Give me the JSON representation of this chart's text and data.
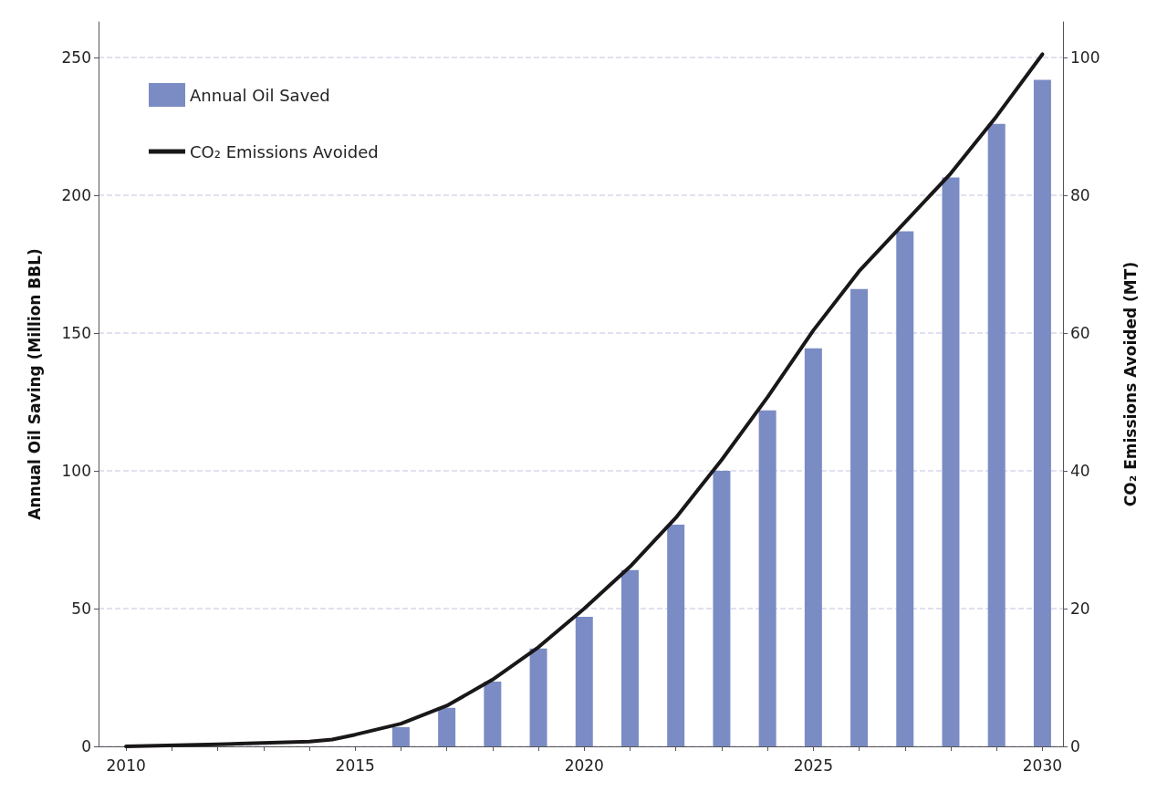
{
  "chart_data": {
    "type": "bar",
    "ylabel": "Annual Oil Saving (Million BBL)",
    "y2label": "CO₂ Emissions Avoided (MT)",
    "series": [
      {
        "name": "Annual Oil Saved",
        "color": "#7b8cc4",
        "x": [
          2016,
          2017,
          2018,
          2019,
          2020,
          2021,
          2022,
          2023,
          2024,
          2025,
          2026,
          2027,
          2028,
          2029,
          2030
        ],
        "values": [
          7,
          14,
          23.5,
          35.5,
          47,
          64,
          80.5,
          100,
          122,
          144.5,
          166,
          187,
          206.5,
          226,
          242
        ]
      },
      {
        "name": "CO₂ Emissions Avoided",
        "type": "line",
        "axis": "y2",
        "color": "#1a1718",
        "line_style": "solid",
        "marker": "none",
        "x": [
          2010,
          2012,
          2014,
          2014.5,
          2015,
          2016,
          2017,
          2018,
          2019,
          2020,
          2021,
          2022,
          2023,
          2024,
          2025,
          2026,
          2027,
          2028,
          2029,
          2030
        ],
        "values": [
          0,
          0.3,
          0.7,
          1,
          1.7,
          3.3,
          5.9,
          9.7,
          14.4,
          20,
          26.1,
          33.2,
          41.6,
          50.7,
          60.4,
          69,
          76.1,
          83.2,
          91.5,
          100.5
        ]
      }
    ],
    "xlim": [
      2009.4,
      2030.45
    ],
    "xticks": [
      2010,
      {
        "value": 2011,
        "label": null
      },
      {
        "value": 2012,
        "label": null
      },
      {
        "value": 2013,
        "label": null
      },
      {
        "value": 2014,
        "label": null
      },
      2015,
      {
        "value": 2016,
        "label": null
      },
      {
        "value": 2017,
        "label": null
      },
      {
        "value": 2018,
        "label": null
      },
      {
        "value": 2019,
        "label": null
      },
      2020,
      {
        "value": 2021,
        "label": null
      },
      {
        "value": 2022,
        "label": null
      },
      {
        "value": 2023,
        "label": null
      },
      {
        "value": 2024,
        "label": null
      },
      2025,
      {
        "value": 2026,
        "label": null
      },
      {
        "value": 2027,
        "label": null
      },
      {
        "value": 2028,
        "label": null
      },
      {
        "value": 2029,
        "label": null
      },
      2030
    ],
    "ylim": [
      0,
      263
    ],
    "yticks": [
      0,
      50,
      100,
      150,
      200,
      250
    ],
    "y2lim": [
      0,
      105.2
    ],
    "y2ticks": [
      0,
      20,
      40,
      60,
      80,
      100
    ],
    "grid": "y",
    "legend": "top left"
  }
}
